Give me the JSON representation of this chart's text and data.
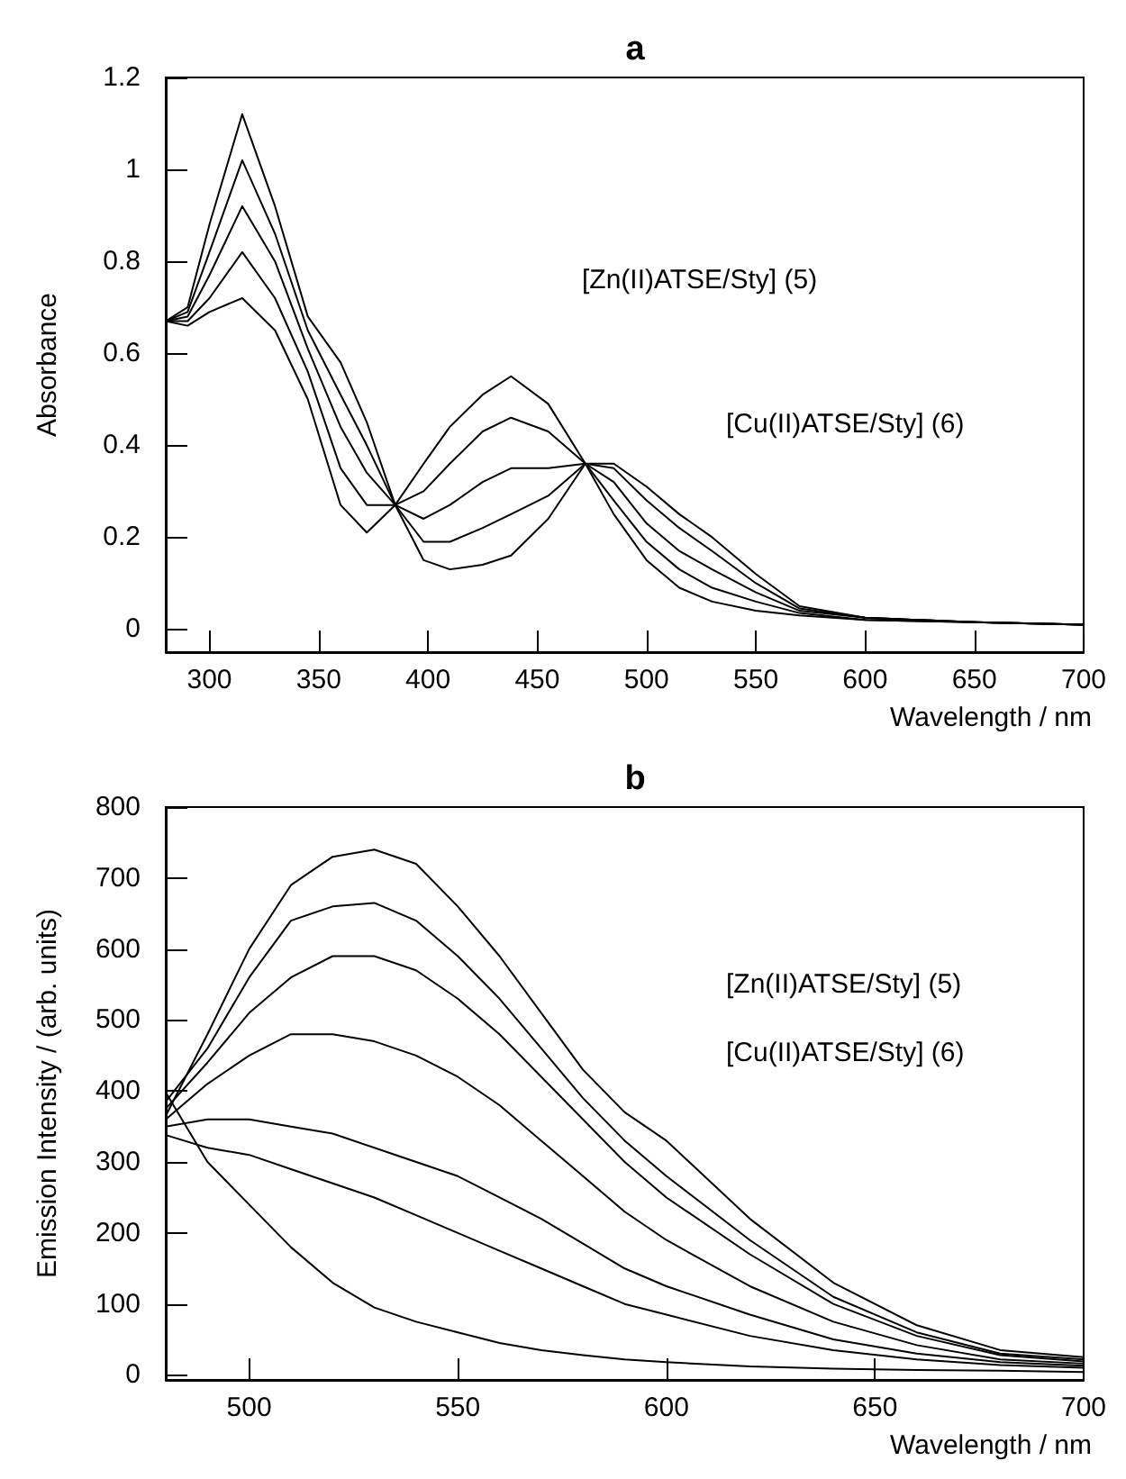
{
  "chart_data": [
    {
      "type": "line",
      "title": "a",
      "xlabel": "Wavelength / nm",
      "ylabel": "Absorbance",
      "xlim": [
        280,
        700
      ],
      "ylim": [
        -0.05,
        1.2
      ],
      "xticks": [
        300,
        350,
        400,
        450,
        500,
        550,
        600,
        650,
        700
      ],
      "yticks": [
        0,
        0.2,
        0.4,
        0.6,
        0.8,
        1,
        1.2
      ],
      "grid": false,
      "marker": "none",
      "line_style": "solid",
      "x": [
        280,
        290,
        300,
        315,
        330,
        345,
        360,
        372,
        385,
        398,
        410,
        425,
        438,
        455,
        472,
        485,
        500,
        515,
        530,
        550,
        570,
        600,
        650,
        700
      ],
      "series": [
        {
          "color": "#000000",
          "values": [
            0.67,
            0.66,
            0.69,
            0.72,
            0.65,
            0.5,
            0.27,
            0.21,
            0.27,
            0.36,
            0.44,
            0.51,
            0.55,
            0.49,
            0.36,
            0.25,
            0.15,
            0.09,
            0.06,
            0.04,
            0.03,
            0.02,
            0.015,
            0.01
          ]
        },
        {
          "color": "#000000",
          "values": [
            0.67,
            0.67,
            0.72,
            0.82,
            0.72,
            0.56,
            0.35,
            0.27,
            0.27,
            0.3,
            0.36,
            0.43,
            0.46,
            0.43,
            0.36,
            0.28,
            0.19,
            0.13,
            0.09,
            0.06,
            0.035,
            0.02,
            0.015,
            0.01
          ]
        },
        {
          "color": "#000000",
          "values": [
            0.67,
            0.68,
            0.77,
            0.92,
            0.8,
            0.61,
            0.44,
            0.34,
            0.27,
            0.24,
            0.27,
            0.32,
            0.35,
            0.35,
            0.36,
            0.32,
            0.23,
            0.17,
            0.13,
            0.08,
            0.04,
            0.025,
            0.015,
            0.01
          ]
        },
        {
          "color": "#000000",
          "values": [
            0.67,
            0.69,
            0.82,
            1.02,
            0.86,
            0.65,
            0.51,
            0.4,
            0.27,
            0.19,
            0.19,
            0.22,
            0.25,
            0.29,
            0.36,
            0.35,
            0.28,
            0.22,
            0.17,
            0.1,
            0.045,
            0.025,
            0.015,
            0.01
          ]
        },
        {
          "color": "#000000",
          "values": [
            0.67,
            0.7,
            0.88,
            1.12,
            0.92,
            0.68,
            0.58,
            0.45,
            0.27,
            0.15,
            0.13,
            0.14,
            0.16,
            0.24,
            0.36,
            0.36,
            0.31,
            0.25,
            0.2,
            0.12,
            0.05,
            0.025,
            0.015,
            0.01
          ]
        }
      ],
      "annotations": [
        "[Zn(II)ATSE/Sty] (5)",
        "[Cu(II)ATSE/Sty] (6)"
      ]
    },
    {
      "type": "line",
      "title": "b",
      "xlabel": "Wavelength / nm",
      "ylabel": "Emission Intensity / (arb. units)",
      "xlim": [
        480,
        700
      ],
      "ylim": [
        -7,
        800
      ],
      "xticks": [
        500,
        550,
        600,
        650,
        700
      ],
      "yticks": [
        0,
        100,
        200,
        300,
        400,
        500,
        600,
        700,
        800
      ],
      "grid": false,
      "marker": "none",
      "line_style": "solid",
      "x": [
        480,
        490,
        500,
        510,
        520,
        530,
        540,
        550,
        560,
        570,
        580,
        590,
        600,
        620,
        640,
        660,
        680,
        700
      ],
      "series": [
        {
          "color": "#000000",
          "values": [
            365,
            480,
            600,
            690,
            730,
            740,
            720,
            660,
            590,
            510,
            430,
            370,
            330,
            220,
            130,
            70,
            35,
            25
          ]
        },
        {
          "color": "#000000",
          "values": [
            385,
            460,
            560,
            640,
            660,
            665,
            640,
            590,
            530,
            460,
            390,
            330,
            280,
            190,
            110,
            60,
            30,
            22
          ]
        },
        {
          "color": "#000000",
          "values": [
            375,
            440,
            510,
            560,
            590,
            590,
            570,
            530,
            480,
            420,
            360,
            300,
            250,
            170,
            100,
            55,
            28,
            19
          ]
        },
        {
          "color": "#000000",
          "values": [
            360,
            410,
            450,
            480,
            480,
            470,
            450,
            420,
            380,
            330,
            280,
            230,
            190,
            125,
            75,
            42,
            22,
            16
          ]
        },
        {
          "color": "#000000",
          "values": [
            350,
            360,
            360,
            350,
            340,
            320,
            300,
            280,
            250,
            220,
            185,
            150,
            125,
            85,
            50,
            30,
            18,
            13
          ]
        },
        {
          "color": "#000000",
          "values": [
            338,
            320,
            310,
            290,
            270,
            250,
            225,
            200,
            175,
            150,
            125,
            100,
            85,
            55,
            35,
            22,
            14,
            10
          ]
        },
        {
          "color": "#000000",
          "values": [
            398,
            300,
            240,
            180,
            130,
            95,
            75,
            60,
            45,
            35,
            28,
            22,
            18,
            12,
            9,
            7,
            6,
            4
          ]
        }
      ],
      "annotations": [
        "[Zn(II)ATSE/Sty] (5)",
        "[Cu(II)ATSE/Sty] (6)"
      ]
    }
  ]
}
